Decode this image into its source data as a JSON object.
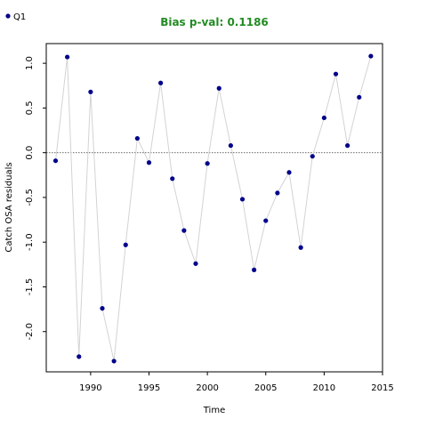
{
  "chart_data": {
    "type": "line",
    "title": "Bias p-val: 0.1186",
    "title_color": "#228B22",
    "xlabel": "Time",
    "ylabel": "Catch OSA residuals",
    "xlim": [
      1986.2,
      2015.0
    ],
    "ylim": [
      -2.45,
      1.22
    ],
    "x_ticks": [
      1990,
      1995,
      2000,
      2005,
      2010,
      2015
    ],
    "y_ticks": [
      -2.0,
      -1.5,
      -1.0,
      -0.5,
      0.0,
      0.5,
      1.0
    ],
    "y_tick_labels": [
      "-2.0",
      "-1.5",
      "-1.0",
      "-0.5",
      "0.0",
      "0.5",
      "1.0"
    ],
    "reference_line": 0.0,
    "line_color": "#d3d3d3",
    "point_color": "#00008B",
    "legend_position": "top-left",
    "series": [
      {
        "name": "Q1",
        "x": [
          1987,
          1988,
          1989,
          1990,
          1991,
          1992,
          1993,
          1994,
          1995,
          1996,
          1997,
          1998,
          1999,
          2000,
          2001,
          2002,
          2003,
          2004,
          2005,
          2006,
          2007,
          2008,
          2009,
          2010,
          2011,
          2012,
          2013,
          2014
        ],
        "values": [
          -0.09,
          1.07,
          -2.28,
          0.68,
          -1.74,
          -2.33,
          -1.03,
          0.16,
          -0.11,
          0.78,
          -0.29,
          -0.87,
          -1.24,
          -0.12,
          0.72,
          0.08,
          -0.52,
          -1.31,
          -0.76,
          -0.45,
          -0.22,
          -1.06,
          -0.04,
          0.39,
          0.88,
          0.08,
          0.62,
          1.08
        ]
      }
    ]
  }
}
